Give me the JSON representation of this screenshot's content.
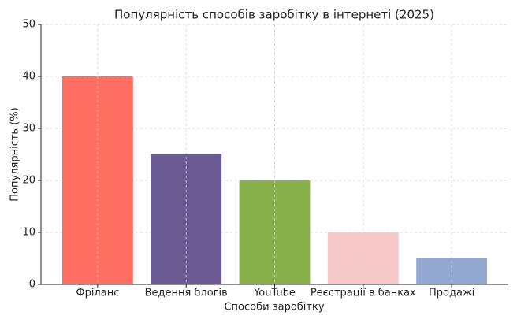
{
  "chart_data": {
    "type": "bar",
    "title": "Популярність способів заробітку в інтернеті (2025)",
    "x_label": "Способи заробітку",
    "y_label": "Популярність (%)",
    "categories": [
      "Фріланс",
      "Ведення блогів",
      "YouTube",
      "Реєстрації в банках",
      "Продажі"
    ],
    "values": [
      40,
      25,
      20,
      10,
      5
    ],
    "colors": [
      "#ff6f61",
      "#6b5b95",
      "#88b04b",
      "#f7cac9",
      "#92a8d1"
    ],
    "ylim": [
      0,
      50
    ],
    "yticks": [
      0,
      10,
      20,
      30,
      40,
      50
    ],
    "grid": true
  }
}
